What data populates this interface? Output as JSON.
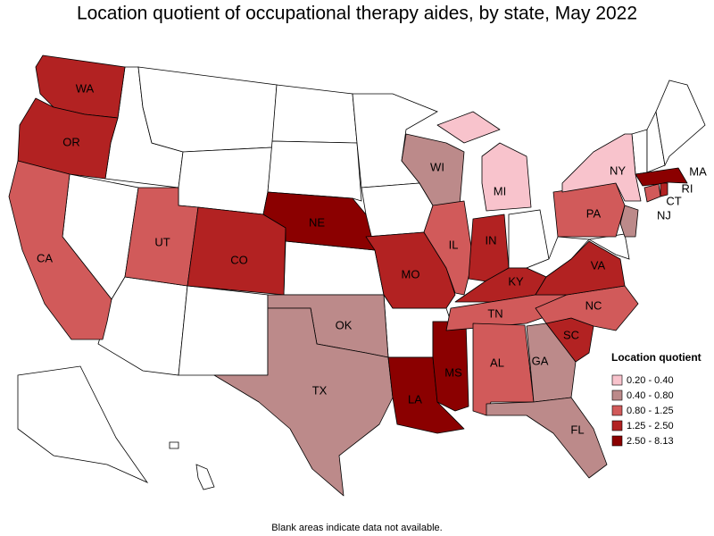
{
  "title": "Location quotient of occupational therapy aides, by state, May 2022",
  "legend": {
    "title": "Location quotient",
    "items": [
      {
        "label": "0.20 - 0.40",
        "color": "#f8c3cc"
      },
      {
        "label": "0.40 - 0.80",
        "color": "#bc8a8a"
      },
      {
        "label": "0.80 - 1.25",
        "color": "#d15a5a"
      },
      {
        "label": "1.25 - 2.50",
        "color": "#b22222"
      },
      {
        "label": "2.50 - 8.13",
        "color": "#8b0000"
      }
    ]
  },
  "states": [
    {
      "label": "WA",
      "color": "#b22222"
    },
    {
      "label": "OR",
      "color": "#b22222"
    },
    {
      "label": "CA",
      "color": "#d15a5a"
    },
    {
      "label": "UT",
      "color": "#d15a5a"
    },
    {
      "label": "CO",
      "color": "#b22222"
    },
    {
      "label": "NE",
      "color": "#8b0000"
    },
    {
      "label": "MO",
      "color": "#b22222"
    },
    {
      "label": "OK",
      "color": "#bc8a8a"
    },
    {
      "label": "TX",
      "color": "#bc8a8a"
    },
    {
      "label": "LA",
      "color": "#8b0000"
    },
    {
      "label": "MS",
      "color": "#8b0000"
    },
    {
      "label": "WI",
      "color": "#bc8a8a"
    },
    {
      "label": "IL",
      "color": "#d15a5a"
    },
    {
      "label": "IN",
      "color": "#b22222"
    },
    {
      "label": "MI",
      "color": "#f8c3cc"
    },
    {
      "label": "KY",
      "color": "#b22222"
    },
    {
      "label": "TN",
      "color": "#d15a5a"
    },
    {
      "label": "AL",
      "color": "#d15a5a"
    },
    {
      "label": "GA",
      "color": "#bc8a8a"
    },
    {
      "label": "FL",
      "color": "#bc8a8a"
    },
    {
      "label": "SC",
      "color": "#b22222"
    },
    {
      "label": "NC",
      "color": "#d15a5a"
    },
    {
      "label": "VA",
      "color": "#b22222"
    },
    {
      "label": "PA",
      "color": "#d15a5a"
    },
    {
      "label": "NY",
      "color": "#f8c3cc"
    },
    {
      "label": "NJ",
      "color": "#bc8a8a"
    },
    {
      "label": "CT",
      "color": "#d15a5a"
    },
    {
      "label": "RI",
      "color": "#b22222"
    },
    {
      "label": "MA",
      "color": "#8b0000"
    }
  ],
  "footnote": "Blank areas indicate data not available."
}
